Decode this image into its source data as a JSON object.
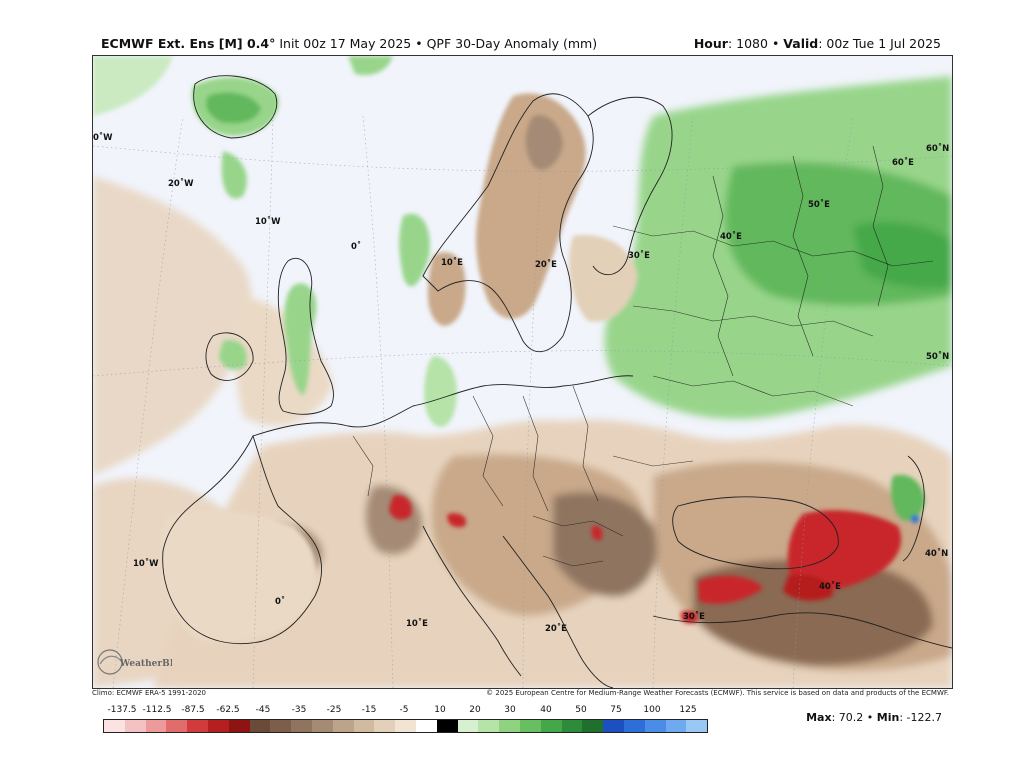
{
  "header": {
    "model": "ECMWF Ext. Ens [M] 0.4°",
    "init": "Init 00z 17 May 2025",
    "product": "QPF 30-Day Anomaly (mm)",
    "hour_label": "Hour",
    "hour_value": ": 1080",
    "valid_label": "Valid",
    "valid_value": ": 00z Tue 1 Jul 2025",
    "separator": "•"
  },
  "map": {
    "grid_labels": {
      "lon_30w": "0˚W",
      "lon_20w": "20˚W",
      "lon_10w_top": "10˚W",
      "lon_0_top": "0˚",
      "lon_10e_top": "10˚E",
      "lon_20e_top": "20˚E",
      "lon_30e_top": "30˚E",
      "lon_40e_top": "40˚E",
      "lon_50e_top": "50˚E",
      "lon_60e_top": "60˚E",
      "lat_60n": "60˚N",
      "lat_50n": "50˚N",
      "lat_40n": "40˚N",
      "lon_10w_bottom": "10˚W",
      "lon_0_bottom": "0˚",
      "lon_10e_bottom": "10˚E",
      "lon_20e_bottom": "20˚E",
      "lon_30e_bottom": "30˚E",
      "lon_40e_bottom": "40˚E"
    },
    "logo_text": "WeatherBELL"
  },
  "credits": {
    "climo": "Climo: ECMWF ERA-5 1991-2020",
    "copyright": "© 2025 European Centre for Medium-Range Weather Forecasts (ECMWF). This service is based on data and products of the ECMWF."
  },
  "legend": {
    "ticks": [
      "-137.5",
      "-112.5",
      "-87.5",
      "-62.5",
      "-45",
      "-35",
      "-25",
      "-15",
      "-5",
      "10",
      "20",
      "30",
      "40",
      "50",
      "75",
      "100",
      "125"
    ],
    "colors": [
      "#fbe3e3",
      "#f4c2c2",
      "#ec9a9a",
      "#e06c6c",
      "#d13b3b",
      "#b51f1f",
      "#8e1414",
      "#6b4a3a",
      "#7d5e4b",
      "#8f7560",
      "#a58b74",
      "#bca48a",
      "#d0baa0",
      "#e2d0b8",
      "#f1e4d2",
      "#ffffff",
      "#000000",
      "#d7f0cf",
      "#b5e3a8",
      "#8fd27f",
      "#68bf5f",
      "#45a848",
      "#2e8b3a",
      "#1f6f2d",
      "#1c4fbf",
      "#2e6ed8",
      "#4b8de6",
      "#6faaf0",
      "#9ac8f6"
    ],
    "colors_note": "colors listed per legend swatch"
  },
  "stats": {
    "max_label": "Max",
    "max_value": ": 70.2",
    "min_label": "Min",
    "min_value": ": -122.7"
  },
  "palette": {
    "ocean": "#f1f4fb",
    "dry_light": "#e7d3bd",
    "dry_mid": "#c9a98a",
    "dry_dark": "#8a6a52",
    "dry_extreme": "#c8282c",
    "wet_light": "#cbeac2",
    "wet_mid": "#98d58b",
    "wet_dark": "#62b85c",
    "wet_blue": "#2f6fd6",
    "borders": "#1a1a1a",
    "coast": "#222222"
  }
}
